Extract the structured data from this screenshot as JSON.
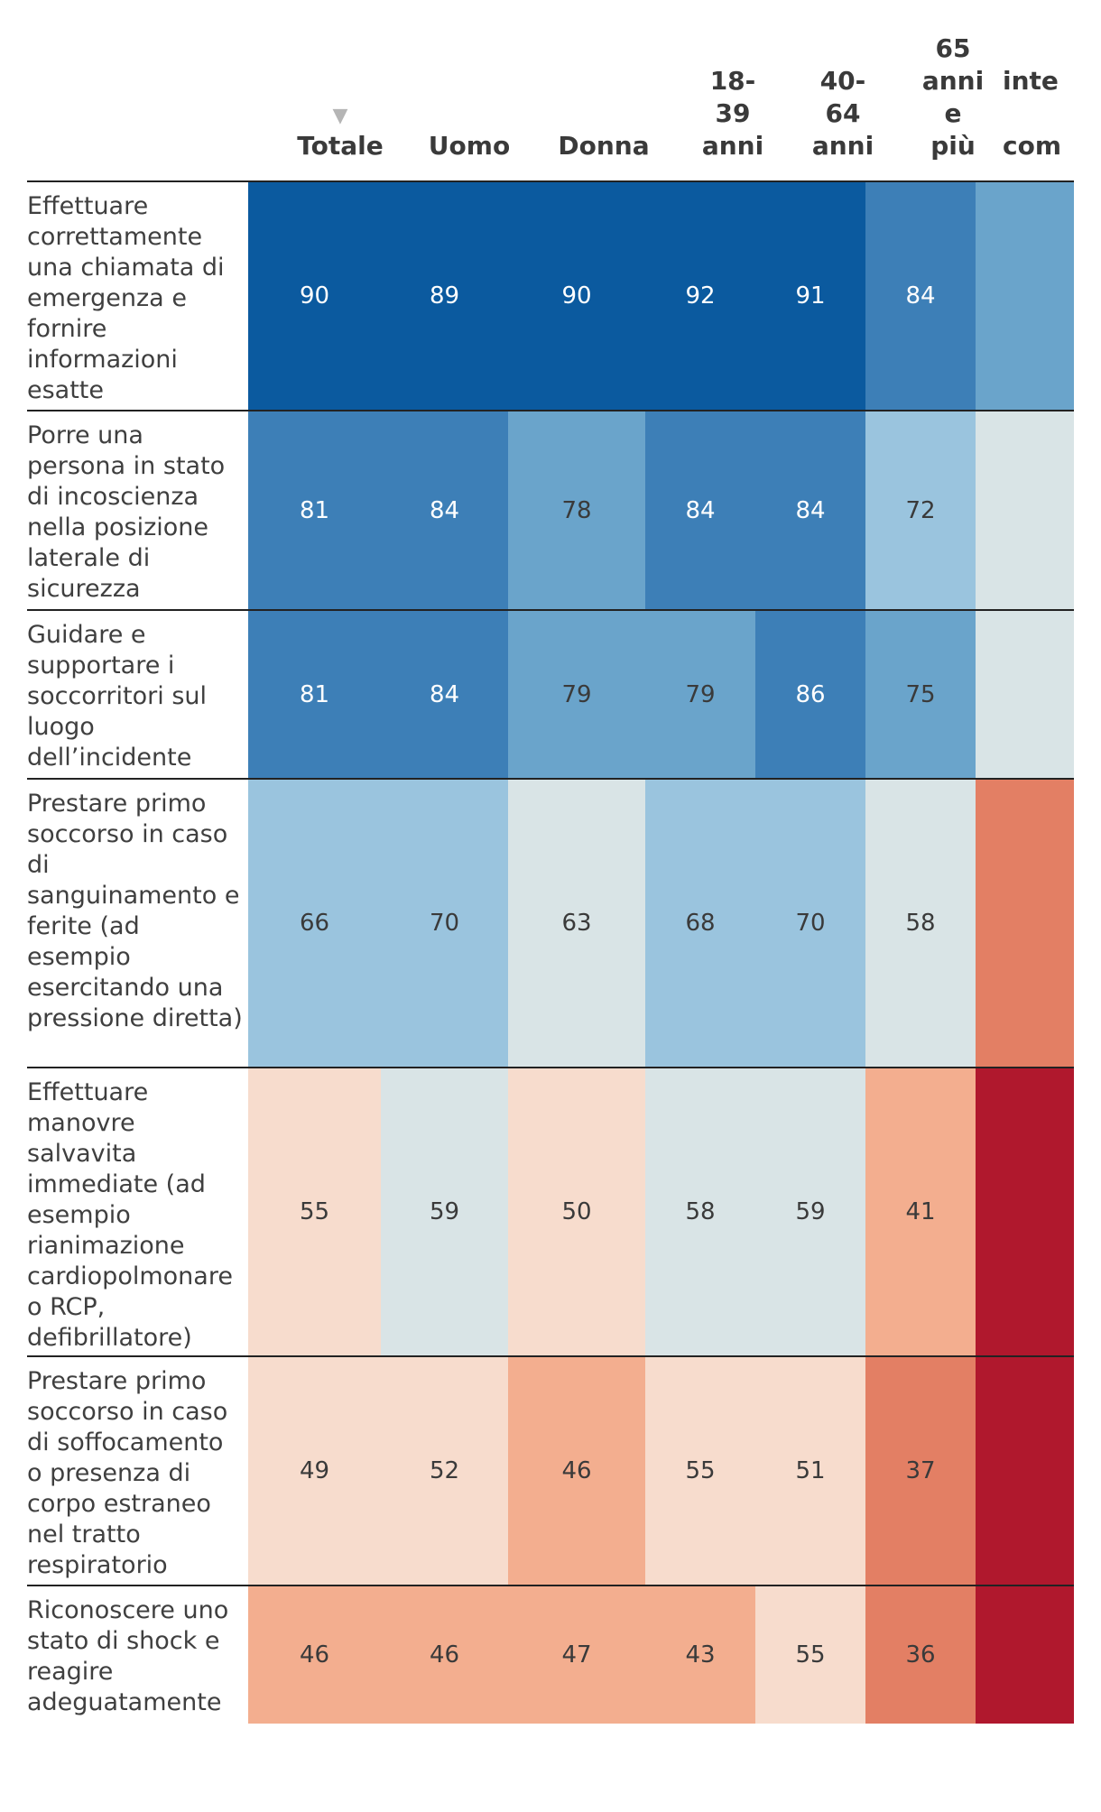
{
  "chart_data": {
    "type": "table",
    "columns": [
      {
        "label": "Totale",
        "sorted": true,
        "sort_marker": "▼"
      },
      {
        "label": "Uomo"
      },
      {
        "label": "Donna"
      },
      {
        "label": "18-\n39\nanni"
      },
      {
        "label": "40-\n64\nanni"
      },
      {
        "label": "65\nanni\ne\npiù"
      },
      {
        "label": "inte\n\ncom"
      }
    ],
    "rows": [
      {
        "label": "Effettuare correttamente una chiamata di emergenza e fornire informazioni esatte",
        "values": [
          90,
          89,
          90,
          92,
          91,
          84,
          null
        ],
        "display": [
          "90",
          "89",
          "90",
          "92",
          "91",
          "84",
          ""
        ],
        "colors": [
          "#0b5a9f",
          "#0b5a9f",
          "#0b5a9f",
          "#0b5a9f",
          "#0b5a9f",
          "#3d7fb7",
          "#6aa4cb"
        ]
      },
      {
        "label": "Porre una persona in stato di incoscienza nella posizione laterale di sicurezza",
        "values": [
          81,
          84,
          78,
          84,
          84,
          72,
          null
        ],
        "display": [
          "81",
          "84",
          "78",
          "84",
          "84",
          "72",
          ""
        ],
        "colors": [
          "#3d7fb7",
          "#3d7fb7",
          "#6aa4cb",
          "#3d7fb7",
          "#3d7fb7",
          "#9ac4de",
          "#d9e4e6"
        ]
      },
      {
        "label": "Guidare e supportare i soccorritori sul luogo dell’incidente",
        "values": [
          81,
          84,
          79,
          79,
          86,
          75,
          null
        ],
        "display": [
          "81",
          "84",
          "79",
          "79",
          "86",
          "75",
          ""
        ],
        "colors": [
          "#3d7fb7",
          "#3d7fb7",
          "#6aa4cb",
          "#6aa4cb",
          "#3d7fb7",
          "#6aa4cb",
          "#d9e4e6"
        ]
      },
      {
        "label": "Prestare primo soccorso in caso di sanguinamento e ferite (ad esempio esercitando una pressione diretta)",
        "values": [
          66,
          70,
          63,
          68,
          70,
          58,
          null
        ],
        "display": [
          "66",
          "70",
          "63",
          "68",
          "70",
          "58",
          ""
        ],
        "colors": [
          "#9ac4de",
          "#9ac4de",
          "#d9e4e6",
          "#9ac4de",
          "#9ac4de",
          "#d9e4e6",
          "#e37f64"
        ]
      },
      {
        "label": "Effettuare manovre salvavita immediate (ad esempio rianimazione cardiopolmonare o RCP, defibrillatore)",
        "values": [
          55,
          59,
          50,
          58,
          59,
          41,
          null
        ],
        "display": [
          "55",
          "59",
          "50",
          "58",
          "59",
          "41",
          ""
        ],
        "colors": [
          "#f7dccd",
          "#d9e4e6",
          "#f7dccd",
          "#d9e4e6",
          "#d9e4e6",
          "#f3ae8f",
          "#b0182d"
        ]
      },
      {
        "label": "Prestare primo soccorso in caso di soffocamento o presenza di corpo estraneo nel tratto respiratorio",
        "values": [
          49,
          52,
          46,
          55,
          51,
          37,
          null
        ],
        "display": [
          "49",
          "52",
          "46",
          "55",
          "51",
          "37",
          ""
        ],
        "colors": [
          "#f7dccd",
          "#f7dccd",
          "#f3ae8f",
          "#f7dccd",
          "#f7dccd",
          "#e37f64",
          "#b0182d"
        ]
      },
      {
        "label": "Riconoscere uno stato di shock e reagire adeguatamente",
        "values": [
          46,
          46,
          47,
          43,
          55,
          36,
          null
        ],
        "display": [
          "46",
          "46",
          "47",
          "43",
          "55",
          "36",
          ""
        ],
        "colors": [
          "#f3ae8f",
          "#f3ae8f",
          "#f3ae8f",
          "#f3ae8f",
          "#f7dccd",
          "#e37f64",
          "#b0182d"
        ]
      }
    ],
    "text_color_dark": "#3a3a3a",
    "text_color_light": "#ffffff",
    "rule_color": "#222222"
  }
}
